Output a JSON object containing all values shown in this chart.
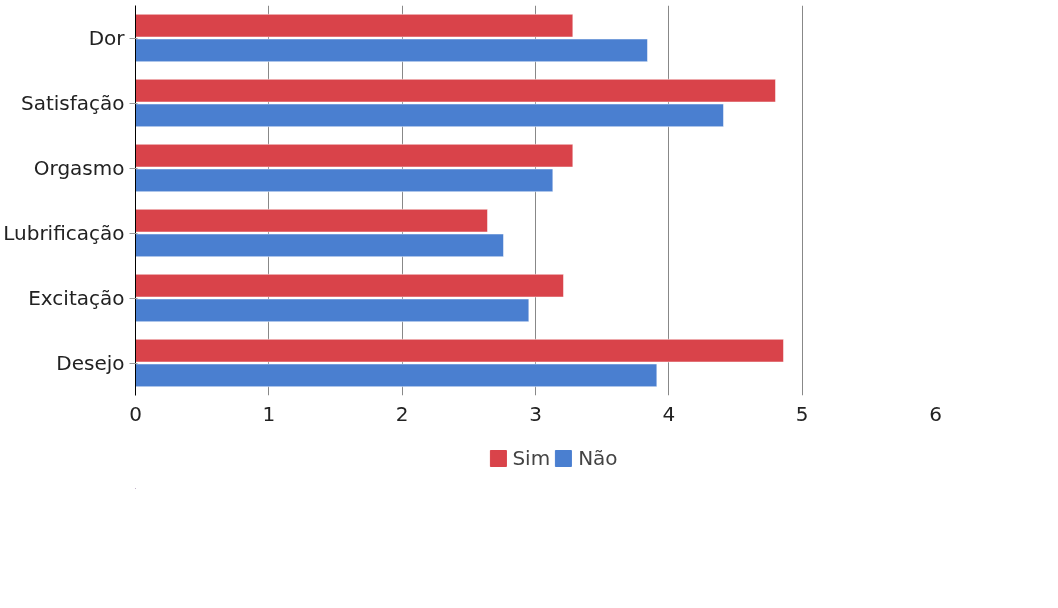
{
  "chart_data": {
    "type": "bar",
    "orientation": "horizontal",
    "categories": [
      "Dor",
      "Satisfação",
      "Orgasmo",
      "Lubrificação",
      "Excitação",
      "Desejo"
    ],
    "series": [
      {
        "name": "Sim",
        "color": "#d9434a",
        "values": [
          3.28,
          4.8,
          3.28,
          2.64,
          3.21,
          4.86
        ]
      },
      {
        "name": "Não",
        "color": "#4a7fd0",
        "values": [
          3.84,
          4.41,
          3.13,
          2.76,
          2.95,
          3.91
        ]
      }
    ],
    "xlim": [
      0,
      6
    ],
    "xticks": [
      0,
      1,
      2,
      3,
      4,
      5,
      6
    ],
    "grid": "x",
    "legend": "bottom"
  }
}
